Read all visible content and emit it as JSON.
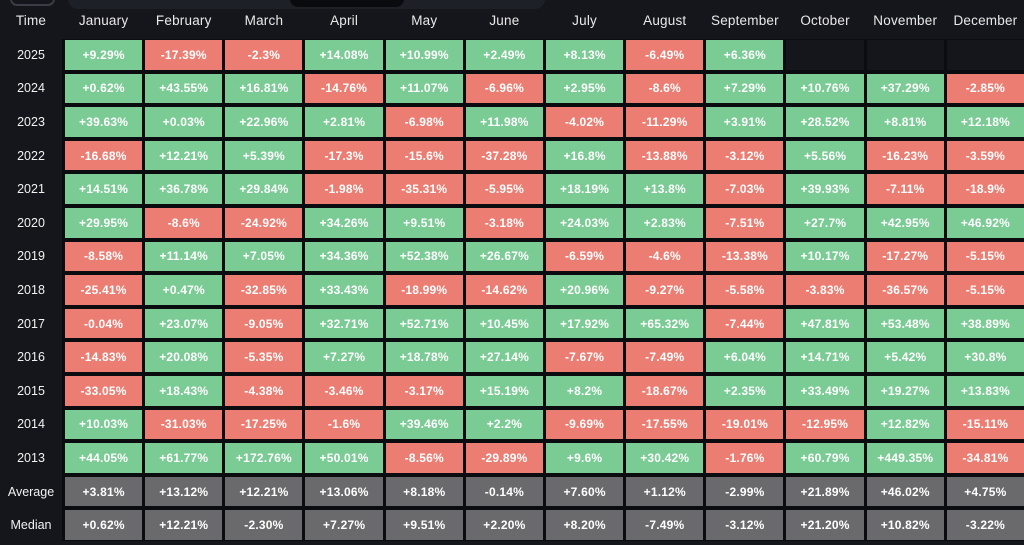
{
  "toolbar": {
    "note_partial_controls": "cut-off button and tab bar at top edge, no visible text"
  },
  "chart_data": {
    "type": "heatmap",
    "row_header_label": "Time",
    "columns": [
      "January",
      "February",
      "March",
      "April",
      "May",
      "June",
      "July",
      "August",
      "September",
      "October",
      "November",
      "December"
    ],
    "rows": [
      {
        "label": "2025",
        "summary": false,
        "values": [
          "+9.29%",
          "-17.39%",
          "-2.3%",
          "+14.08%",
          "+10.99%",
          "+2.49%",
          "+8.13%",
          "-6.49%",
          "+6.36%",
          "",
          "",
          ""
        ]
      },
      {
        "label": "2024",
        "summary": false,
        "values": [
          "+0.62%",
          "+43.55%",
          "+16.81%",
          "-14.76%",
          "+11.07%",
          "-6.96%",
          "+2.95%",
          "-8.6%",
          "+7.29%",
          "+10.76%",
          "+37.29%",
          "-2.85%"
        ]
      },
      {
        "label": "2023",
        "summary": false,
        "values": [
          "+39.63%",
          "+0.03%",
          "+22.96%",
          "+2.81%",
          "-6.98%",
          "+11.98%",
          "-4.02%",
          "-11.29%",
          "+3.91%",
          "+28.52%",
          "+8.81%",
          "+12.18%"
        ]
      },
      {
        "label": "2022",
        "summary": false,
        "values": [
          "-16.68%",
          "+12.21%",
          "+5.39%",
          "-17.3%",
          "-15.6%",
          "-37.28%",
          "+16.8%",
          "-13.88%",
          "-3.12%",
          "+5.56%",
          "-16.23%",
          "-3.59%"
        ]
      },
      {
        "label": "2021",
        "summary": false,
        "values": [
          "+14.51%",
          "+36.78%",
          "+29.84%",
          "-1.98%",
          "-35.31%",
          "-5.95%",
          "+18.19%",
          "+13.8%",
          "-7.03%",
          "+39.93%",
          "-7.11%",
          "-18.9%"
        ]
      },
      {
        "label": "2020",
        "summary": false,
        "values": [
          "+29.95%",
          "-8.6%",
          "-24.92%",
          "+34.26%",
          "+9.51%",
          "-3.18%",
          "+24.03%",
          "+2.83%",
          "-7.51%",
          "+27.7%",
          "+42.95%",
          "+46.92%"
        ]
      },
      {
        "label": "2019",
        "summary": false,
        "values": [
          "-8.58%",
          "+11.14%",
          "+7.05%",
          "+34.36%",
          "+52.38%",
          "+26.67%",
          "-6.59%",
          "-4.6%",
          "-13.38%",
          "+10.17%",
          "-17.27%",
          "-5.15%"
        ]
      },
      {
        "label": "2018",
        "summary": false,
        "values": [
          "-25.41%",
          "+0.47%",
          "-32.85%",
          "+33.43%",
          "-18.99%",
          "-14.62%",
          "+20.96%",
          "-9.27%",
          "-5.58%",
          "-3.83%",
          "-36.57%",
          "-5.15%"
        ]
      },
      {
        "label": "2017",
        "summary": false,
        "values": [
          "-0.04%",
          "+23.07%",
          "-9.05%",
          "+32.71%",
          "+52.71%",
          "+10.45%",
          "+17.92%",
          "+65.32%",
          "-7.44%",
          "+47.81%",
          "+53.48%",
          "+38.89%"
        ]
      },
      {
        "label": "2016",
        "summary": false,
        "values": [
          "-14.83%",
          "+20.08%",
          "-5.35%",
          "+7.27%",
          "+18.78%",
          "+27.14%",
          "-7.67%",
          "-7.49%",
          "+6.04%",
          "+14.71%",
          "+5.42%",
          "+30.8%"
        ]
      },
      {
        "label": "2015",
        "summary": false,
        "values": [
          "-33.05%",
          "+18.43%",
          "-4.38%",
          "-3.46%",
          "-3.17%",
          "+15.19%",
          "+8.2%",
          "-18.67%",
          "+2.35%",
          "+33.49%",
          "+19.27%",
          "+13.83%"
        ]
      },
      {
        "label": "2014",
        "summary": false,
        "values": [
          "+10.03%",
          "-31.03%",
          "-17.25%",
          "-1.6%",
          "+39.46%",
          "+2.2%",
          "-9.69%",
          "-17.55%",
          "-19.01%",
          "-12.95%",
          "+12.82%",
          "-15.11%"
        ]
      },
      {
        "label": "2013",
        "summary": false,
        "values": [
          "+44.05%",
          "+61.77%",
          "+172.76%",
          "+50.01%",
          "-8.56%",
          "-29.89%",
          "+9.6%",
          "+30.42%",
          "-1.76%",
          "+60.79%",
          "+449.35%",
          "-34.81%"
        ]
      },
      {
        "label": "Average",
        "summary": true,
        "values": [
          "+3.81%",
          "+13.12%",
          "+12.21%",
          "+13.06%",
          "+8.18%",
          "-0.14%",
          "+7.60%",
          "+1.12%",
          "-2.99%",
          "+21.89%",
          "+46.02%",
          "+4.75%"
        ]
      },
      {
        "label": "Median",
        "summary": true,
        "values": [
          "+0.62%",
          "+12.21%",
          "-2.30%",
          "+7.27%",
          "+9.51%",
          "+2.20%",
          "+8.20%",
          "-7.49%",
          "-3.12%",
          "+21.20%",
          "+10.82%",
          "-3.22%"
        ]
      }
    ],
    "colors": {
      "positive": "#7acb94",
      "negative": "#ec7d73",
      "summary": "#6a6a6c",
      "grid_line": "#0b0c0f",
      "background": "#15161b",
      "header_text": "#e9e9ea",
      "cell_text": "#ffffff"
    },
    "layout": {
      "legend": "none",
      "grid": "on"
    }
  }
}
